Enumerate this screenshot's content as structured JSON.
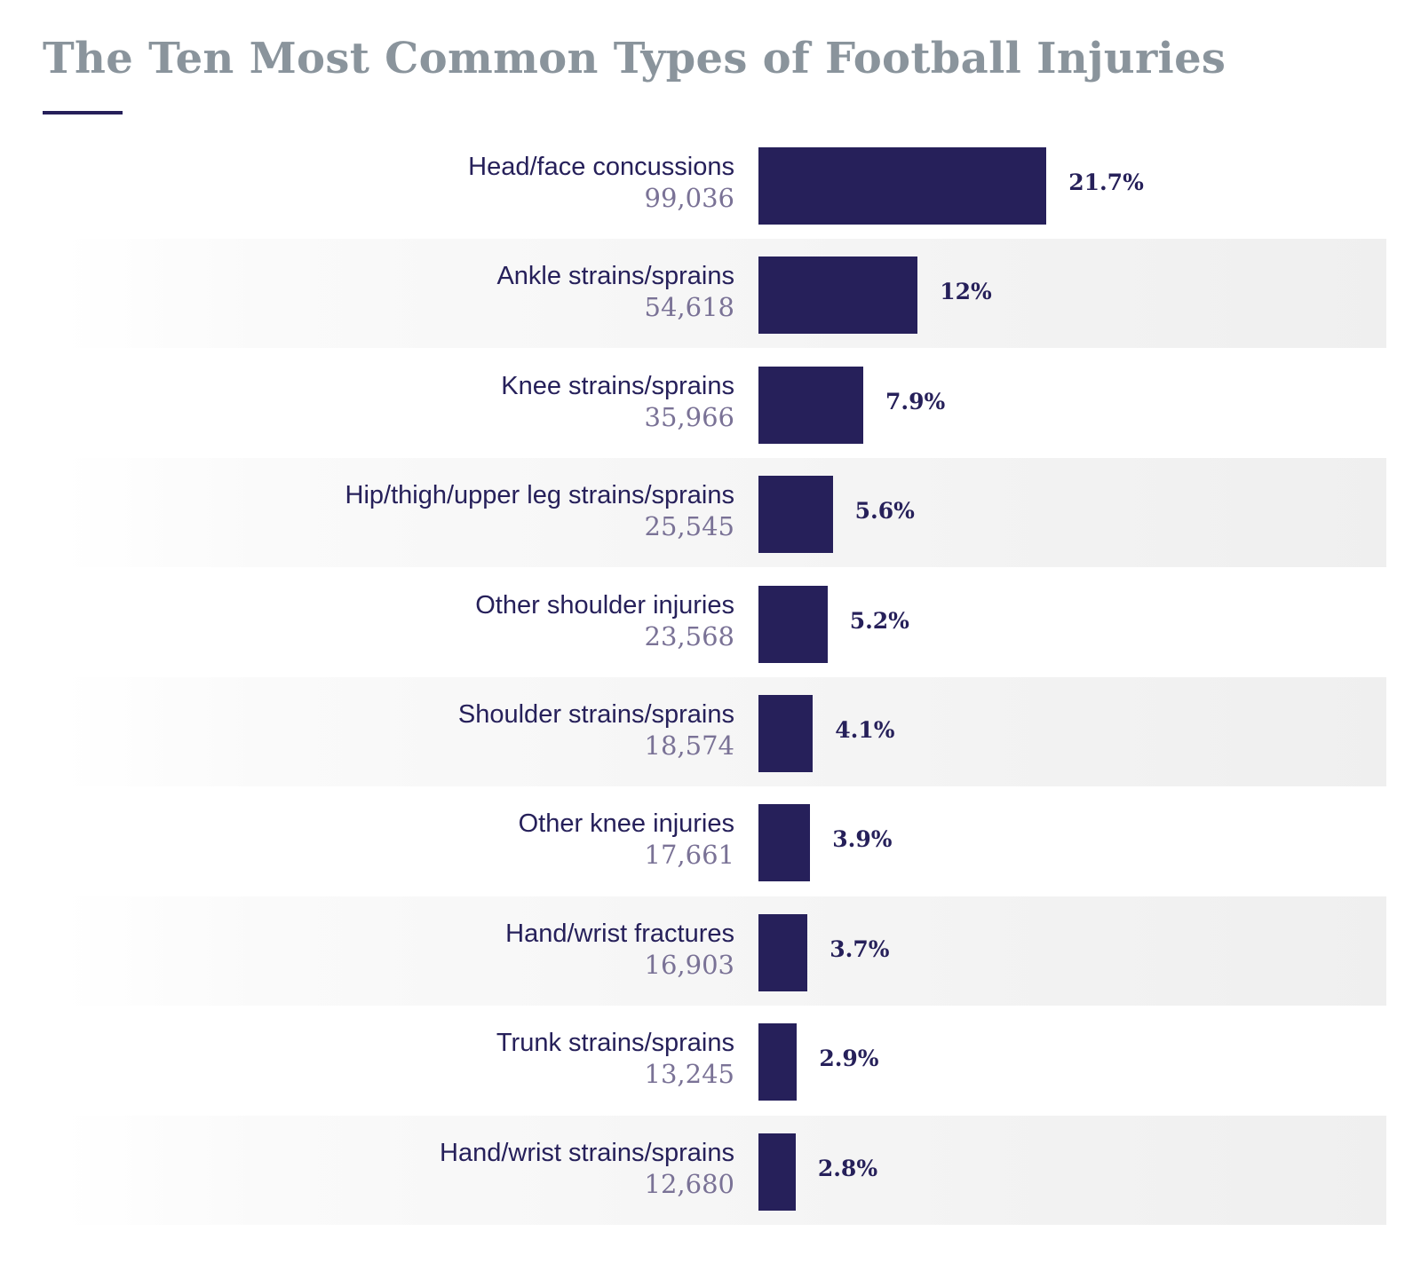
{
  "chart_data": {
    "type": "bar",
    "orientation": "horizontal",
    "title": "The Ten Most Common Types of Football Injuries",
    "categories": [
      "Head/face concussions",
      "Ankle strains/sprains",
      "Knee strains/sprains",
      "Hip/thigh/upper leg strains/sprains",
      "Other shoulder injuries",
      "Shoulder strains/sprains",
      "Other knee injuries",
      "Hand/wrist fractures",
      "Trunk strains/sprains",
      "Hand/wrist strains/sprains"
    ],
    "counts": [
      "99,036",
      "54,618",
      "35,966",
      "25,545",
      "23,568",
      "18,574",
      "17,661",
      "16,903",
      "13,245",
      "12,680"
    ],
    "values": [
      21.7,
      12,
      7.9,
      5.6,
      5.2,
      4.1,
      3.9,
      3.7,
      2.9,
      2.8
    ],
    "value_labels": [
      "21.7%",
      "12%",
      "7.9%",
      "5.6%",
      "5.2%",
      "4.1%",
      "3.9%",
      "3.7%",
      "2.9%",
      "2.8%"
    ],
    "grid": false,
    "colors": {
      "bar": "#26205a",
      "title": "#8a949c",
      "count": "#7a7296",
      "band": "#efefef"
    }
  }
}
